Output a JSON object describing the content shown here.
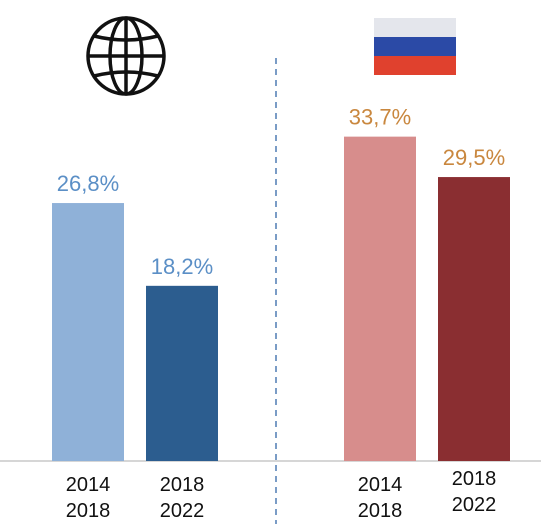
{
  "chart_data": [
    {
      "type": "bar",
      "panel": "world",
      "icon": "globe-icon",
      "categories": [
        "2014\n2018",
        "2018\n2022"
      ],
      "values": [
        26.8,
        18.2
      ],
      "value_labels": [
        "26,8%",
        "18,2%"
      ],
      "bar_colors": [
        "#8fb1d8",
        "#2c5d8f"
      ],
      "label_color": "#5b8fc6",
      "ylim": [
        0,
        40
      ],
      "grid": false
    },
    {
      "type": "bar",
      "panel": "russia",
      "icon": "russia-flag-icon",
      "categories": [
        "2014\n2018",
        "2018\n2022"
      ],
      "values": [
        33.7,
        29.5
      ],
      "value_labels": [
        "33,7%",
        "29,5%"
      ],
      "bar_colors": [
        "#d78d8c",
        "#8a2e31"
      ],
      "label_color": "#c9873e",
      "ylim": [
        0,
        40
      ],
      "grid": false
    }
  ],
  "colors": {
    "divider": "#7a9cc6",
    "baseline": "#c9c9c9",
    "text": "#111111",
    "flag_white": "#e4e6ec",
    "flag_blue": "#2b4aa6",
    "flag_red": "#e0412e"
  }
}
